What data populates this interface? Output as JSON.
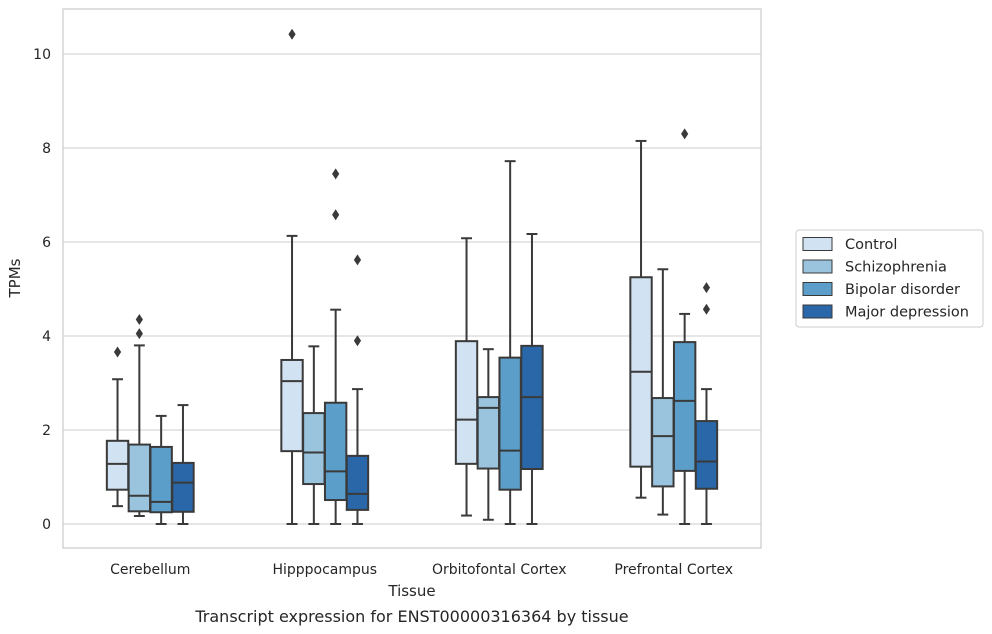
{
  "chart_data": {
    "type": "box",
    "caption": "Transcript expression for ENST00000316364 by tissue",
    "xlabel": "Tissue",
    "ylabel": "TPMs",
    "ylim": [
      -0.5,
      10.9
    ],
    "yticks": [
      0,
      2,
      4,
      6,
      8,
      10
    ],
    "grid": "horizontal",
    "legend_position": "right",
    "categories": [
      "Cerebellum",
      "Hipppocampus",
      "Orbitofontal Cortex",
      "Prefrontal Cortex"
    ],
    "series": [
      {
        "name": "Control",
        "color": "#d1e2f2",
        "boxes": [
          {
            "whislo": 0.38,
            "q1": 0.73,
            "med": 1.28,
            "q3": 1.77,
            "whishi": 3.08,
            "fliers": [
              3.66
            ]
          },
          {
            "whislo": 0.0,
            "q1": 1.55,
            "med": 3.04,
            "q3": 3.49,
            "whishi": 6.13,
            "fliers": [
              10.42
            ]
          },
          {
            "whislo": 0.18,
            "q1": 1.28,
            "med": 2.22,
            "q3": 3.89,
            "whishi": 6.08,
            "fliers": []
          },
          {
            "whislo": 0.56,
            "q1": 1.22,
            "med": 3.24,
            "q3": 5.25,
            "whishi": 8.15,
            "fliers": []
          }
        ]
      },
      {
        "name": "Schizophrenia",
        "color": "#9ac4de",
        "boxes": [
          {
            "whislo": 0.17,
            "q1": 0.27,
            "med": 0.6,
            "q3": 1.69,
            "whishi": 3.8,
            "fliers": [
              4.05,
              4.35
            ]
          },
          {
            "whislo": 0.0,
            "q1": 0.85,
            "med": 1.52,
            "q3": 2.36,
            "whishi": 3.78,
            "fliers": []
          },
          {
            "whislo": 0.09,
            "q1": 1.18,
            "med": 2.47,
            "q3": 2.7,
            "whishi": 3.72,
            "fliers": []
          },
          {
            "whislo": 0.2,
            "q1": 0.8,
            "med": 1.87,
            "q3": 2.68,
            "whishi": 5.42,
            "fliers": []
          }
        ]
      },
      {
        "name": "Bipolar disorder",
        "color": "#5b9ec9",
        "boxes": [
          {
            "whislo": 0.0,
            "q1": 0.25,
            "med": 0.47,
            "q3": 1.64,
            "whishi": 2.3,
            "fliers": []
          },
          {
            "whislo": 0.0,
            "q1": 0.51,
            "med": 1.12,
            "q3": 2.58,
            "whishi": 4.56,
            "fliers": [
              6.58,
              7.45
            ]
          },
          {
            "whislo": 0.0,
            "q1": 0.73,
            "med": 1.56,
            "q3": 3.54,
            "whishi": 7.72,
            "fliers": []
          },
          {
            "whislo": 0.0,
            "q1": 1.13,
            "med": 2.62,
            "q3": 3.87,
            "whishi": 4.47,
            "fliers": [
              8.3
            ]
          }
        ]
      },
      {
        "name": "Major depression",
        "color": "#2967a9",
        "boxes": [
          {
            "whislo": 0.0,
            "q1": 0.26,
            "med": 0.88,
            "q3": 1.3,
            "whishi": 2.53,
            "fliers": []
          },
          {
            "whislo": 0.0,
            "q1": 0.3,
            "med": 0.64,
            "q3": 1.45,
            "whishi": 2.87,
            "fliers": [
              3.9,
              5.62
            ]
          },
          {
            "whislo": 0.0,
            "q1": 1.17,
            "med": 2.7,
            "q3": 3.79,
            "whishi": 6.17,
            "fliers": []
          },
          {
            "whislo": 0.0,
            "q1": 0.75,
            "med": 1.33,
            "q3": 2.19,
            "whishi": 2.87,
            "fliers": [
              4.57,
              5.03
            ]
          }
        ]
      }
    ]
  }
}
